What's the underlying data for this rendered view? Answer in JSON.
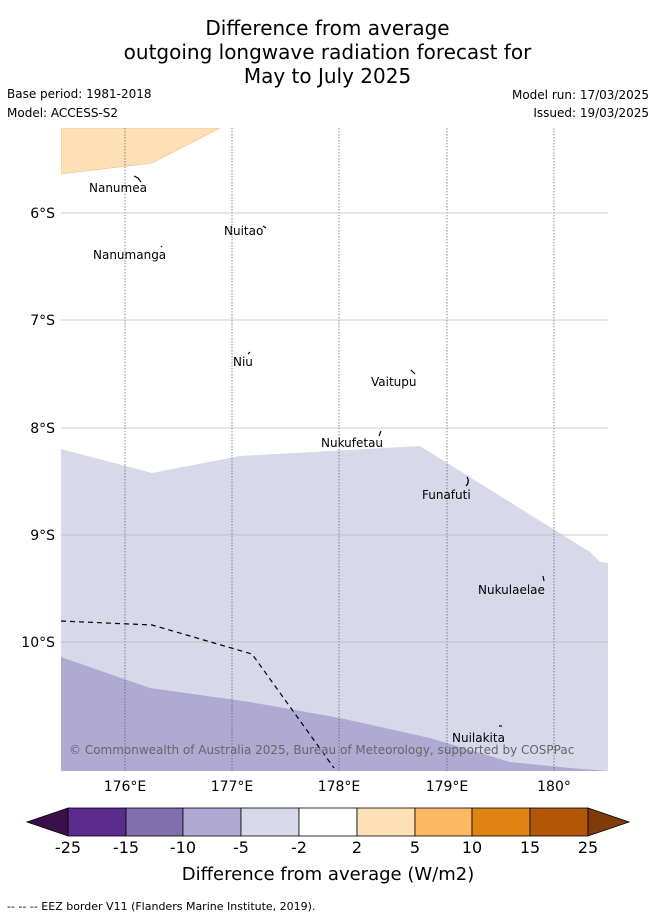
{
  "title": {
    "line1": "Difference from average",
    "line2": "outgoing longwave radiation forecast for",
    "line3": "May to July 2025"
  },
  "meta": {
    "base_period": "Base period: 1981-2018",
    "model": "Model: ACCESS-S2",
    "model_run": "Model run: 17/03/2025",
    "issued": "Issued: 19/03/2025"
  },
  "map": {
    "lon_labels": [
      "176°E",
      "177°E",
      "178°E",
      "179°E",
      "180°"
    ],
    "lat_labels": [
      "6°S",
      "7°S",
      "8°S",
      "9°S",
      "10°S"
    ],
    "places": [
      "Nanumea",
      "Nuitao",
      "Nanumanga",
      "Niu",
      "Vaitupu",
      "Nukufetau",
      "Funafuti",
      "Nukulaelae",
      "Nuilakita"
    ],
    "copyright": "© Commonwealth of Australia 2025, Bureau of Meteorology, supported by COSPPac"
  },
  "colorbar": {
    "ticks": [
      "-25",
      "-15",
      "-10",
      "-5",
      "-2",
      "2",
      "5",
      "10",
      "15",
      "25"
    ],
    "colors": [
      "#3b0f4a",
      "#5a2a8c",
      "#7f6fae",
      "#b0aad2",
      "#d8d8eb",
      "#ffffff",
      "#fde0b5",
      "#fdb863",
      "#e08214",
      "#b35806",
      "#7f3b08"
    ],
    "label": "Difference from average (W/m2)"
  },
  "footnote": "--  --  -- EEZ border V11 (Flanders Marine Institute, 2019)."
}
